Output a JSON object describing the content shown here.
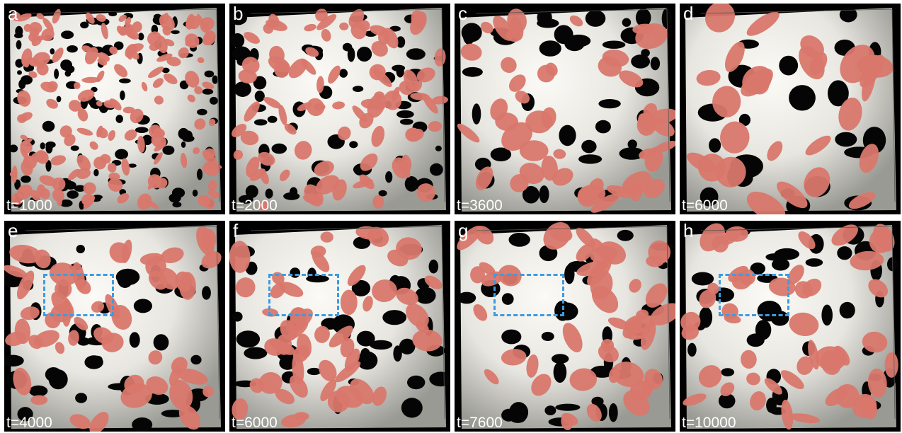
{
  "figure": {
    "panels": [
      {
        "letter": "a",
        "time": "t=1000",
        "scale": 0.55,
        "roi": false
      },
      {
        "letter": "b",
        "time": "t=2000",
        "scale": 0.75,
        "roi": false
      },
      {
        "letter": "c",
        "time": "t=3600",
        "scale": 1.0,
        "roi": false
      },
      {
        "letter": "d",
        "time": "t=6000",
        "scale": 1.3,
        "roi": false
      },
      {
        "letter": "e",
        "time": "t=4000",
        "scale": 0.95,
        "roi": true
      },
      {
        "letter": "f",
        "time": "t=6000",
        "scale": 0.95,
        "roi": true
      },
      {
        "letter": "g",
        "time": "t=7600",
        "scale": 1.0,
        "roi": true
      },
      {
        "letter": "h",
        "time": "t=10000",
        "scale": 1.0,
        "roi": true
      }
    ],
    "colors": {
      "background": "#000000",
      "surface_light": "#e8e6e0",
      "surface_shadow": "#9a9a94",
      "surface_cut": "#d9776b",
      "roi_outline": "#3d9be0",
      "label": "#ffffff"
    }
  }
}
